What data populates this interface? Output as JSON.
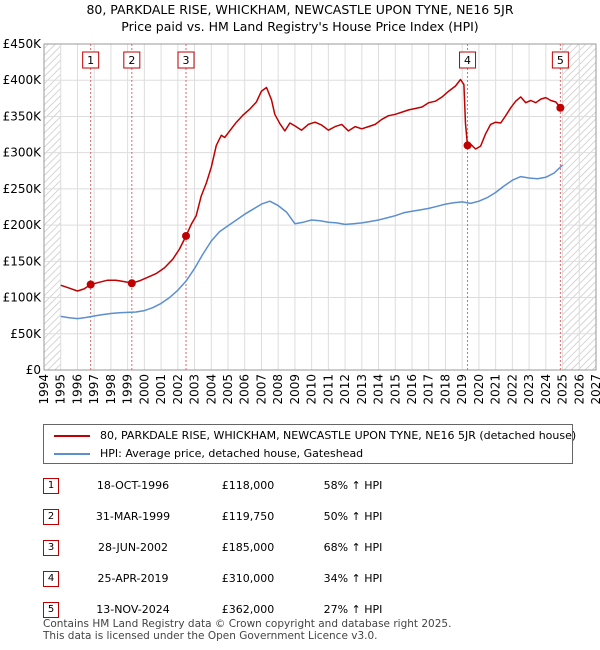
{
  "chart_data": {
    "type": "line",
    "title": "80, PARKDALE RISE, WHICKHAM, NEWCASTLE UPON TYNE, NE16 5JR",
    "subtitle": "Price paid vs. HM Land Registry's House Price Index (HPI)",
    "ylim": [
      0,
      450000
    ],
    "xlim": [
      1994,
      2027
    ],
    "y_ticks": [
      {
        "value": 0,
        "label": "£0"
      },
      {
        "value": 50000,
        "label": "£50K"
      },
      {
        "value": 100000,
        "label": "£100K"
      },
      {
        "value": 150000,
        "label": "£150K"
      },
      {
        "value": 200000,
        "label": "£200K"
      },
      {
        "value": 250000,
        "label": "£250K"
      },
      {
        "value": 300000,
        "label": "£300K"
      },
      {
        "value": 350000,
        "label": "£350K"
      },
      {
        "value": 400000,
        "label": "£400K"
      },
      {
        "value": 450000,
        "label": "£450K"
      }
    ],
    "x_ticks": [
      "1994",
      "1995",
      "1996",
      "1997",
      "1998",
      "1999",
      "2000",
      "2001",
      "2002",
      "2003",
      "2004",
      "2005",
      "2006",
      "2007",
      "2008",
      "2009",
      "2010",
      "2011",
      "2012",
      "2013",
      "2014",
      "2015",
      "2016",
      "2017",
      "2018",
      "2019",
      "2020",
      "2021",
      "2022",
      "2023",
      "2024",
      "2025",
      "2026",
      "2027"
    ],
    "hatch_before": 1995.0,
    "hatch_after": 2025.0,
    "series": [
      {
        "name": "80, PARKDALE RISE, WHICKHAM, NEWCASTLE UPON TYNE, NE16 5JR (detached house)",
        "color": "#c00000",
        "x": [
          1995.0,
          1995.5,
          1996.0,
          1996.4,
          1996.79,
          1997.3,
          1997.8,
          1998.3,
          1998.8,
          1999.25,
          1999.7,
          2000.2,
          2000.7,
          2001.2,
          2001.7,
          2002.1,
          2002.49,
          2002.8,
          2003.1,
          2003.4,
          2003.7,
          2004.0,
          2004.3,
          2004.6,
          2004.8,
          2005.1,
          2005.5,
          2005.9,
          2006.3,
          2006.7,
          2007.0,
          2007.3,
          2007.6,
          2007.8,
          2008.1,
          2008.4,
          2008.7,
          2009.0,
          2009.4,
          2009.8,
          2010.2,
          2010.6,
          2011.0,
          2011.4,
          2011.8,
          2012.2,
          2012.6,
          2013.0,
          2013.4,
          2013.8,
          2014.2,
          2014.6,
          2015.0,
          2015.4,
          2015.8,
          2016.2,
          2016.6,
          2017.0,
          2017.4,
          2017.8,
          2018.2,
          2018.6,
          2018.9,
          2019.1,
          2019.2,
          2019.32,
          2019.5,
          2019.8,
          2020.1,
          2020.4,
          2020.7,
          2021.0,
          2021.3,
          2021.6,
          2021.9,
          2022.2,
          2022.5,
          2022.8,
          2023.1,
          2023.4,
          2023.7,
          2024.0,
          2024.3,
          2024.6,
          2024.87,
          2025.0
        ],
        "values": [
          117000,
          113000,
          109000,
          112000,
          118000,
          121000,
          124000,
          124000,
          122000,
          119750,
          123000,
          128000,
          133000,
          141000,
          153000,
          167000,
          185000,
          201000,
          213000,
          240000,
          258000,
          280000,
          310000,
          324000,
          321000,
          330000,
          342000,
          352000,
          360000,
          370000,
          385000,
          390000,
          373000,
          353000,
          340000,
          330000,
          341000,
          337000,
          331000,
          339000,
          342000,
          338000,
          331000,
          336000,
          339000,
          330000,
          336000,
          333000,
          336000,
          339000,
          346000,
          351000,
          353000,
          356000,
          359000,
          361000,
          363000,
          369000,
          371000,
          377000,
          385000,
          392000,
          401000,
          394000,
          340000,
          310000,
          312000,
          305000,
          309000,
          326000,
          339000,
          342000,
          341000,
          351000,
          362000,
          371000,
          377000,
          369000,
          372000,
          369000,
          374000,
          376000,
          372000,
          370000,
          362000,
          365000
        ]
      },
      {
        "name": "HPI: Average price, detached house, Gateshead",
        "color": "#5b8fd0",
        "x": [
          1995.0,
          1995.5,
          1996.0,
          1996.5,
          1997.0,
          1997.5,
          1998.0,
          1998.5,
          1999.0,
          1999.5,
          2000.0,
          2000.5,
          2001.0,
          2001.5,
          2002.0,
          2002.5,
          2003.0,
          2003.5,
          2004.0,
          2004.5,
          2005.0,
          2005.5,
          2006.0,
          2006.5,
          2007.0,
          2007.5,
          2008.0,
          2008.5,
          2009.0,
          2009.5,
          2010.0,
          2010.5,
          2011.0,
          2011.5,
          2012.0,
          2012.5,
          2013.0,
          2013.5,
          2014.0,
          2014.5,
          2015.0,
          2015.5,
          2016.0,
          2016.5,
          2017.0,
          2017.5,
          2018.0,
          2018.5,
          2019.0,
          2019.5,
          2020.0,
          2020.5,
          2021.0,
          2021.5,
          2022.0,
          2022.5,
          2023.0,
          2023.5,
          2024.0,
          2024.5,
          2025.0
        ],
        "values": [
          74000,
          72000,
          71000,
          72500,
          74500,
          76500,
          78000,
          79000,
          79500,
          80000,
          82000,
          86000,
          92000,
          100000,
          110000,
          123000,
          140000,
          160000,
          178000,
          191000,
          199000,
          207000,
          215000,
          222000,
          229000,
          233000,
          227000,
          218000,
          202000,
          204000,
          207000,
          206000,
          204000,
          203000,
          201000,
          202000,
          203000,
          205000,
          207000,
          210000,
          213000,
          217000,
          219000,
          221000,
          223000,
          226000,
          229000,
          231000,
          232000,
          230000,
          233000,
          238000,
          245000,
          254000,
          262000,
          267000,
          265000,
          264000,
          266000,
          272000,
          283000
        ]
      }
    ],
    "sales": [
      {
        "num": "1",
        "x": 1996.79,
        "value": 118000
      },
      {
        "num": "2",
        "x": 1999.25,
        "value": 119750
      },
      {
        "num": "3",
        "x": 2002.49,
        "value": 185000
      },
      {
        "num": "4",
        "x": 2019.32,
        "value": 310000
      },
      {
        "num": "5",
        "x": 2024.87,
        "value": 362000
      }
    ]
  },
  "legend": {
    "property_label": "80, PARKDALE RISE, WHICKHAM, NEWCASTLE UPON TYNE, NE16 5JR (detached house)",
    "hpi_label": "HPI: Average price, detached house, Gateshead",
    "property_color": "#c00000",
    "hpi_color": "#5b8fd0"
  },
  "table": [
    {
      "num": "1",
      "date": "18-OCT-1996",
      "price": "£118,000",
      "hpi": "58% ↑ HPI"
    },
    {
      "num": "2",
      "date": "31-MAR-1999",
      "price": "£119,750",
      "hpi": "50% ↑ HPI"
    },
    {
      "num": "3",
      "date": "28-JUN-2002",
      "price": "£185,000",
      "hpi": "68% ↑ HPI"
    },
    {
      "num": "4",
      "date": "25-APR-2019",
      "price": "£310,000",
      "hpi": "34% ↑ HPI"
    },
    {
      "num": "5",
      "date": "13-NOV-2024",
      "price": "£362,000",
      "hpi": "27% ↑ HPI"
    }
  ],
  "footer": {
    "line1": "Contains HM Land Registry data © Crown copyright and database right 2025.",
    "line2": "This data is licensed under the Open Government Licence v3.0."
  }
}
